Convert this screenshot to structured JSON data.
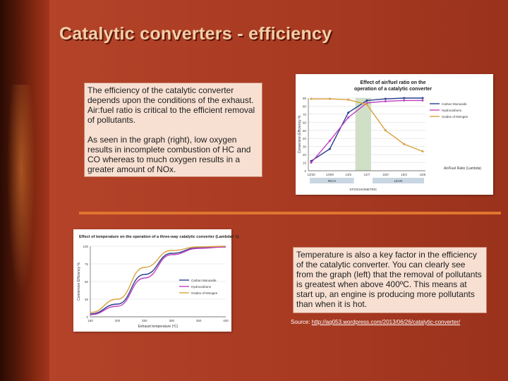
{
  "slide": {
    "title": "Catalytic converters - efficiency",
    "box1": {
      "para1": "The efficiency of the catalytic converter depends upon the conditions of the exhaust. Air:fuel ratio is critical to the efficient removal of pollutants.",
      "para2": "As seen in the graph (right), low oxygen results in incomplete combustion of HC and CO whereas to much oxygen results in a greater amount of NOx."
    },
    "box2": {
      "text": "Temperature is also a key factor in the efficiency of the catalytic converter. You can clearly see from the graph (left) that the removal of pollutants is greatest when above 400ºC. This means at start up, an engine is producing more pollutants than when it is hot."
    },
    "source": {
      "label": "Source: ",
      "link": "http://aq053.wordpress.com/2013/06/26/catalytic-converter/"
    },
    "colors": {
      "accent": "#e0752f",
      "title": "#f3cfa9",
      "box": "#f7e0d2"
    }
  },
  "chart_data": [
    {
      "type": "line",
      "title": "Effect of air/fuel ratio on the operation of a catalytic converter",
      "xlabel": "Air/Fuel Ratio (Lambda)",
      "ylabel": "Conversion Efficiency %",
      "categories": [
        "13/28",
        "13/60",
        "14/5",
        "14/7",
        "15/0",
        "15/2",
        "15/5"
      ],
      "ylim": [
        0,
        90
      ],
      "yticks": [
        0,
        10,
        20,
        30,
        40,
        50,
        60,
        70,
        80,
        90
      ],
      "series": [
        {
          "name": "Carbon Monoxide",
          "color": "#2c3e8f",
          "values": [
            12,
            27,
            72,
            87,
            89,
            90,
            90
          ]
        },
        {
          "name": "Hydrocarbons",
          "color": "#c040c0",
          "values": [
            10,
            37,
            66,
            84,
            86,
            87,
            87
          ]
        },
        {
          "name": "Oxides of Nitrogen",
          "color": "#d9a13c",
          "values": [
            89,
            89,
            88,
            82,
            50,
            33,
            24
          ]
        }
      ],
      "zones": [
        "RICH",
        "LEAN"
      ],
      "band_label": "STOICHIOMETRIC",
      "legend": "right"
    },
    {
      "type": "line",
      "title": "Effect of temperature on the operation of a three-way catalytic converter (Lambda= 1)",
      "xlabel": "Exhaust temperature (ºC)",
      "ylabel": "Conversion Efficiency %",
      "x": [
        150,
        200,
        250,
        300,
        350,
        400
      ],
      "ylim": [
        0,
        100
      ],
      "yticks": [
        0,
        25,
        50,
        75,
        100
      ],
      "series": [
        {
          "name": "Carbon Monoxide",
          "color": "#2c3e8f",
          "values": [
            4,
            18,
            60,
            90,
            98,
            99
          ]
        },
        {
          "name": "Hydrocarbons",
          "color": "#c040c0",
          "values": [
            3,
            15,
            55,
            88,
            97,
            99
          ]
        },
        {
          "name": "Oxides of Nitrogen",
          "color": "#d9a13c",
          "values": [
            6,
            25,
            70,
            94,
            99,
            100
          ]
        }
      ],
      "legend": "right"
    }
  ]
}
